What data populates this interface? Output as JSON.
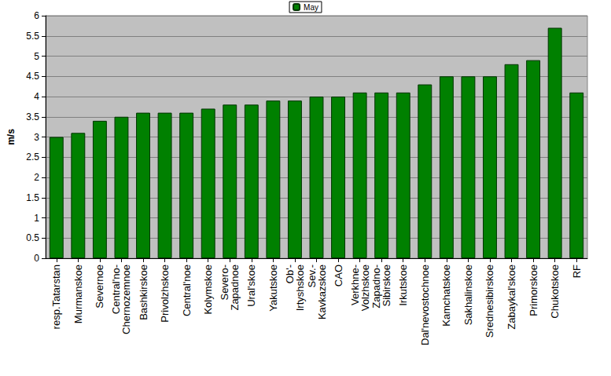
{
  "chart_data": {
    "type": "bar",
    "ylabel": "m/s",
    "categories": [
      "resp.Tatarstan",
      "Murmanskoe",
      "Severnoe",
      "Central'no-\nChernozemnoe",
      "Bashkirskoe",
      "Privolzhskoe",
      "Central'noe",
      "Kolymskoe",
      "Severo-\nZapadnoe",
      "Ural'skoe",
      "Yakutskoe",
      "Ob'-\nIrtyshskoe",
      "Sev.-\nKavkazskoe",
      "CAO",
      "Verkhne-\nVolzhskoe",
      "Zapadno-\nSibirskoe",
      "Irkutskoe",
      "Dal'nevostochnoe",
      "Kamchatskoe",
      "Sakhalinskoe",
      "Srednesibirskoe",
      "Zabaykal'skoe",
      "Primorskoe",
      "Chukotskoe",
      "RF"
    ],
    "series": [
      {
        "name": "May",
        "color": "#008000",
        "values": [
          3.0,
          3.1,
          3.4,
          3.5,
          3.6,
          3.6,
          3.6,
          3.7,
          3.8,
          3.8,
          3.9,
          3.9,
          4.0,
          4.0,
          4.1,
          4.1,
          4.1,
          4.3,
          4.5,
          4.5,
          4.5,
          4.8,
          4.9,
          5.7,
          4.1
        ]
      }
    ],
    "ylim": [
      0,
      6
    ],
    "yticks": [
      0,
      0.5,
      1,
      1.5,
      2,
      2.5,
      3,
      3.5,
      4,
      4.5,
      5,
      5.5,
      6
    ],
    "grid": true,
    "legend": "top"
  }
}
